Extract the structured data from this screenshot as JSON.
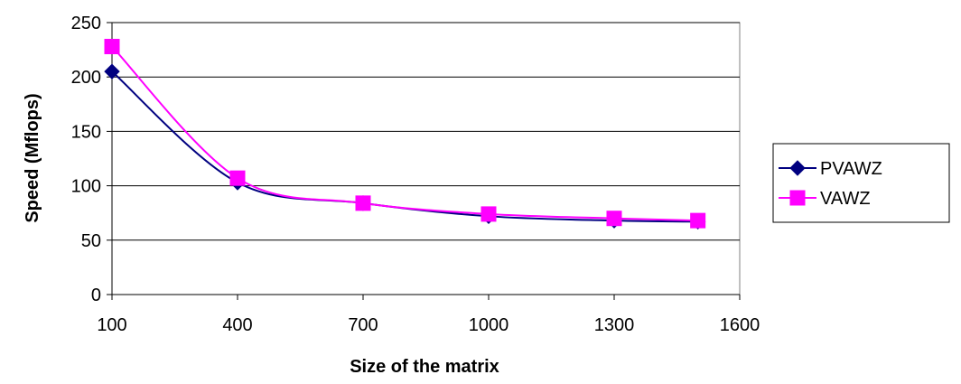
{
  "chart_data": {
    "type": "line",
    "title": "",
    "xlabel": "Size of the matrix",
    "ylabel": "Speed (Mflops)",
    "xlim": [
      100,
      1600
    ],
    "ylim": [
      0,
      250
    ],
    "xticks": [
      100,
      400,
      700,
      1000,
      1300,
      1600
    ],
    "yticks": [
      0,
      50,
      100,
      150,
      200,
      250
    ],
    "grid": "horizontal",
    "legend": "right",
    "series": [
      {
        "name": "PVAWZ",
        "color": "#000080",
        "marker": "diamond",
        "x": [
          100,
          400,
          700,
          1000,
          1300,
          1500
        ],
        "y": [
          205,
          103,
          84,
          72,
          68,
          67
        ]
      },
      {
        "name": "VAWZ",
        "color": "#ff00ff",
        "marker": "square",
        "x": [
          100,
          400,
          700,
          1000,
          1300,
          1500
        ],
        "y": [
          228,
          107,
          84,
          74,
          70,
          68
        ]
      }
    ]
  }
}
